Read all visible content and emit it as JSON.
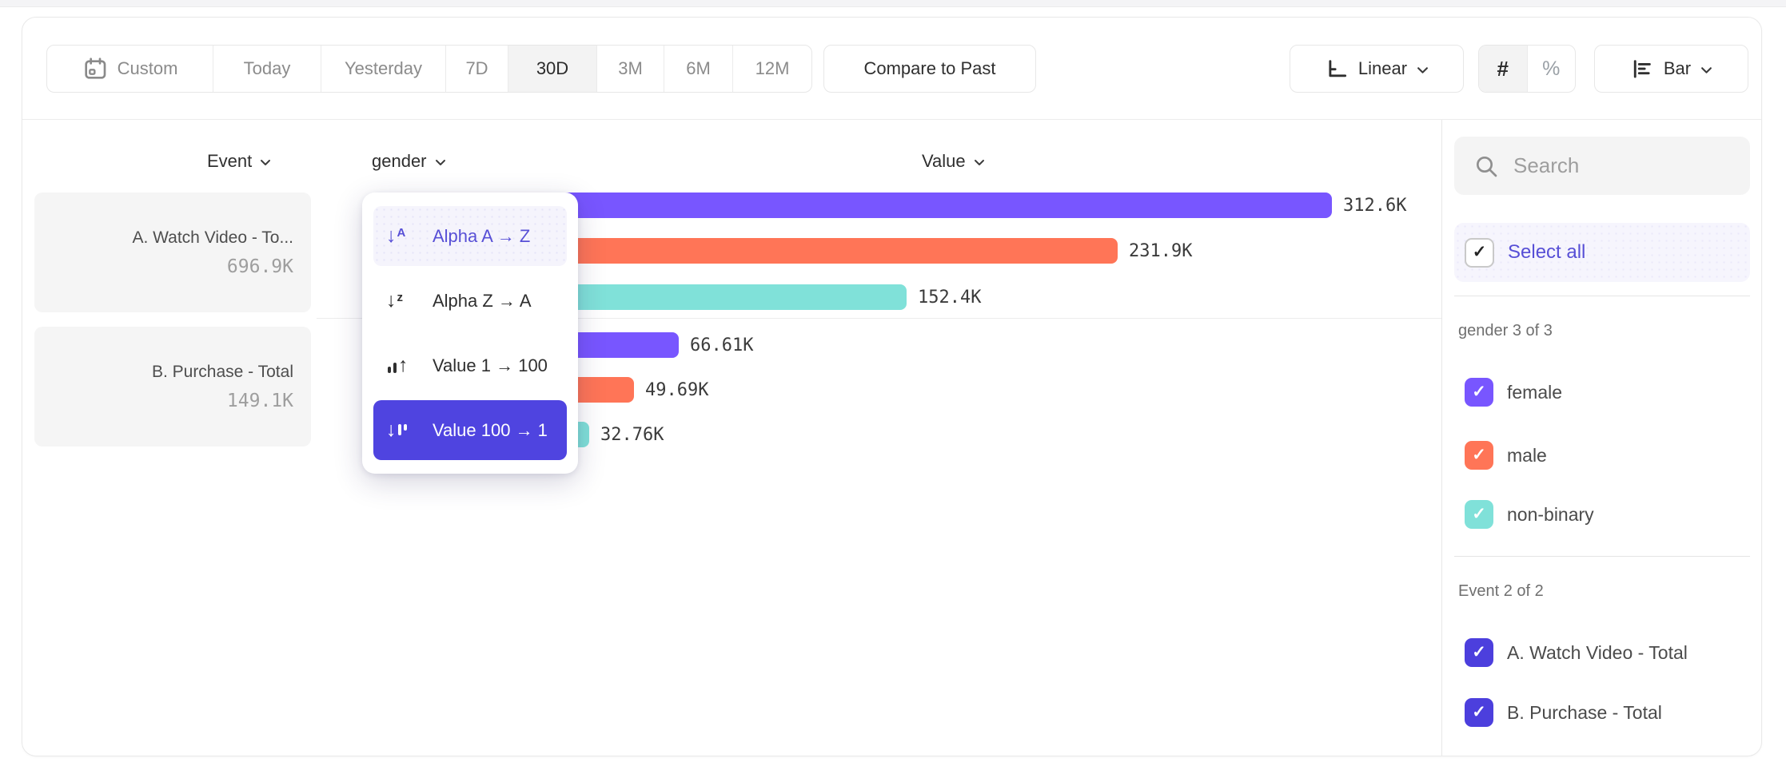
{
  "toolbar": {
    "date_ranges": [
      "Custom",
      "Today",
      "Yesterday",
      "7D",
      "30D",
      "3M",
      "6M",
      "12M"
    ],
    "selected_range": "30D",
    "compare_button": "Compare to Past",
    "scale_selector": "Linear",
    "value_format_number": "#",
    "value_format_percent": "%",
    "chart_type_selector": "Bar"
  },
  "chart_header": {
    "event": "Event",
    "breakdown": "gender",
    "value": "Value"
  },
  "sort_menu": {
    "items": [
      {
        "label": "Alpha A → Z",
        "state": "highlighted"
      },
      {
        "label": "Alpha Z → A",
        "state": "normal"
      },
      {
        "label": "Value 1 → 100",
        "state": "normal"
      },
      {
        "label": "Value 100 → 1",
        "state": "selected"
      }
    ]
  },
  "chart_data": {
    "type": "bar",
    "orientation": "horizontal",
    "breakdown_property": "gender",
    "value_axis_label": "Value",
    "sort_order": "Value 100 → 1",
    "groups": [
      {
        "event": "A. Watch Video - Total",
        "event_display": "A. Watch Video - To...",
        "event_total": "696.9K",
        "bars": [
          {
            "segment": "female",
            "value": 312600,
            "label": "312.6K",
            "color": "#7856FF"
          },
          {
            "segment": "male",
            "value": 231900,
            "label": "231.9K",
            "color": "#FF7557"
          },
          {
            "segment": "non-binary",
            "value": 152400,
            "label": "152.4K",
            "color": "#80E1D9"
          }
        ]
      },
      {
        "event": "B. Purchase - Total",
        "event_display": "B. Purchase - Total",
        "event_total": "149.1K",
        "bars": [
          {
            "segment": "female",
            "value": 66610,
            "label": "66.61K",
            "color": "#7856FF"
          },
          {
            "segment": "male",
            "value": 49690,
            "label": "49.69K",
            "color": "#FF7557"
          },
          {
            "segment": "non-binary",
            "value": 32760,
            "label": "32.76K",
            "color": "#80E1D9"
          }
        ]
      }
    ]
  },
  "sidebar": {
    "search_placeholder": "Search",
    "select_all": "Select all",
    "sections": [
      {
        "title": "gender 3 of 3",
        "items": [
          {
            "label": "female",
            "checked": true,
            "color": "#7856FF"
          },
          {
            "label": "male",
            "checked": true,
            "color": "#FF7557"
          },
          {
            "label": "non-binary",
            "checked": true,
            "color": "#80E1D9"
          }
        ]
      },
      {
        "title": "Event 2 of 2",
        "items": [
          {
            "label": "A. Watch Video - Total",
            "checked": true,
            "color": "#4C3FDD"
          },
          {
            "label": "B. Purchase - Total",
            "checked": true,
            "color": "#4C3FDD"
          }
        ]
      }
    ]
  },
  "colors": {
    "female": "#7856FF",
    "male": "#FF7557",
    "non_binary": "#80E1D9",
    "selected_menu_item": "#4F44E0",
    "accent_text": "#574FD6"
  }
}
